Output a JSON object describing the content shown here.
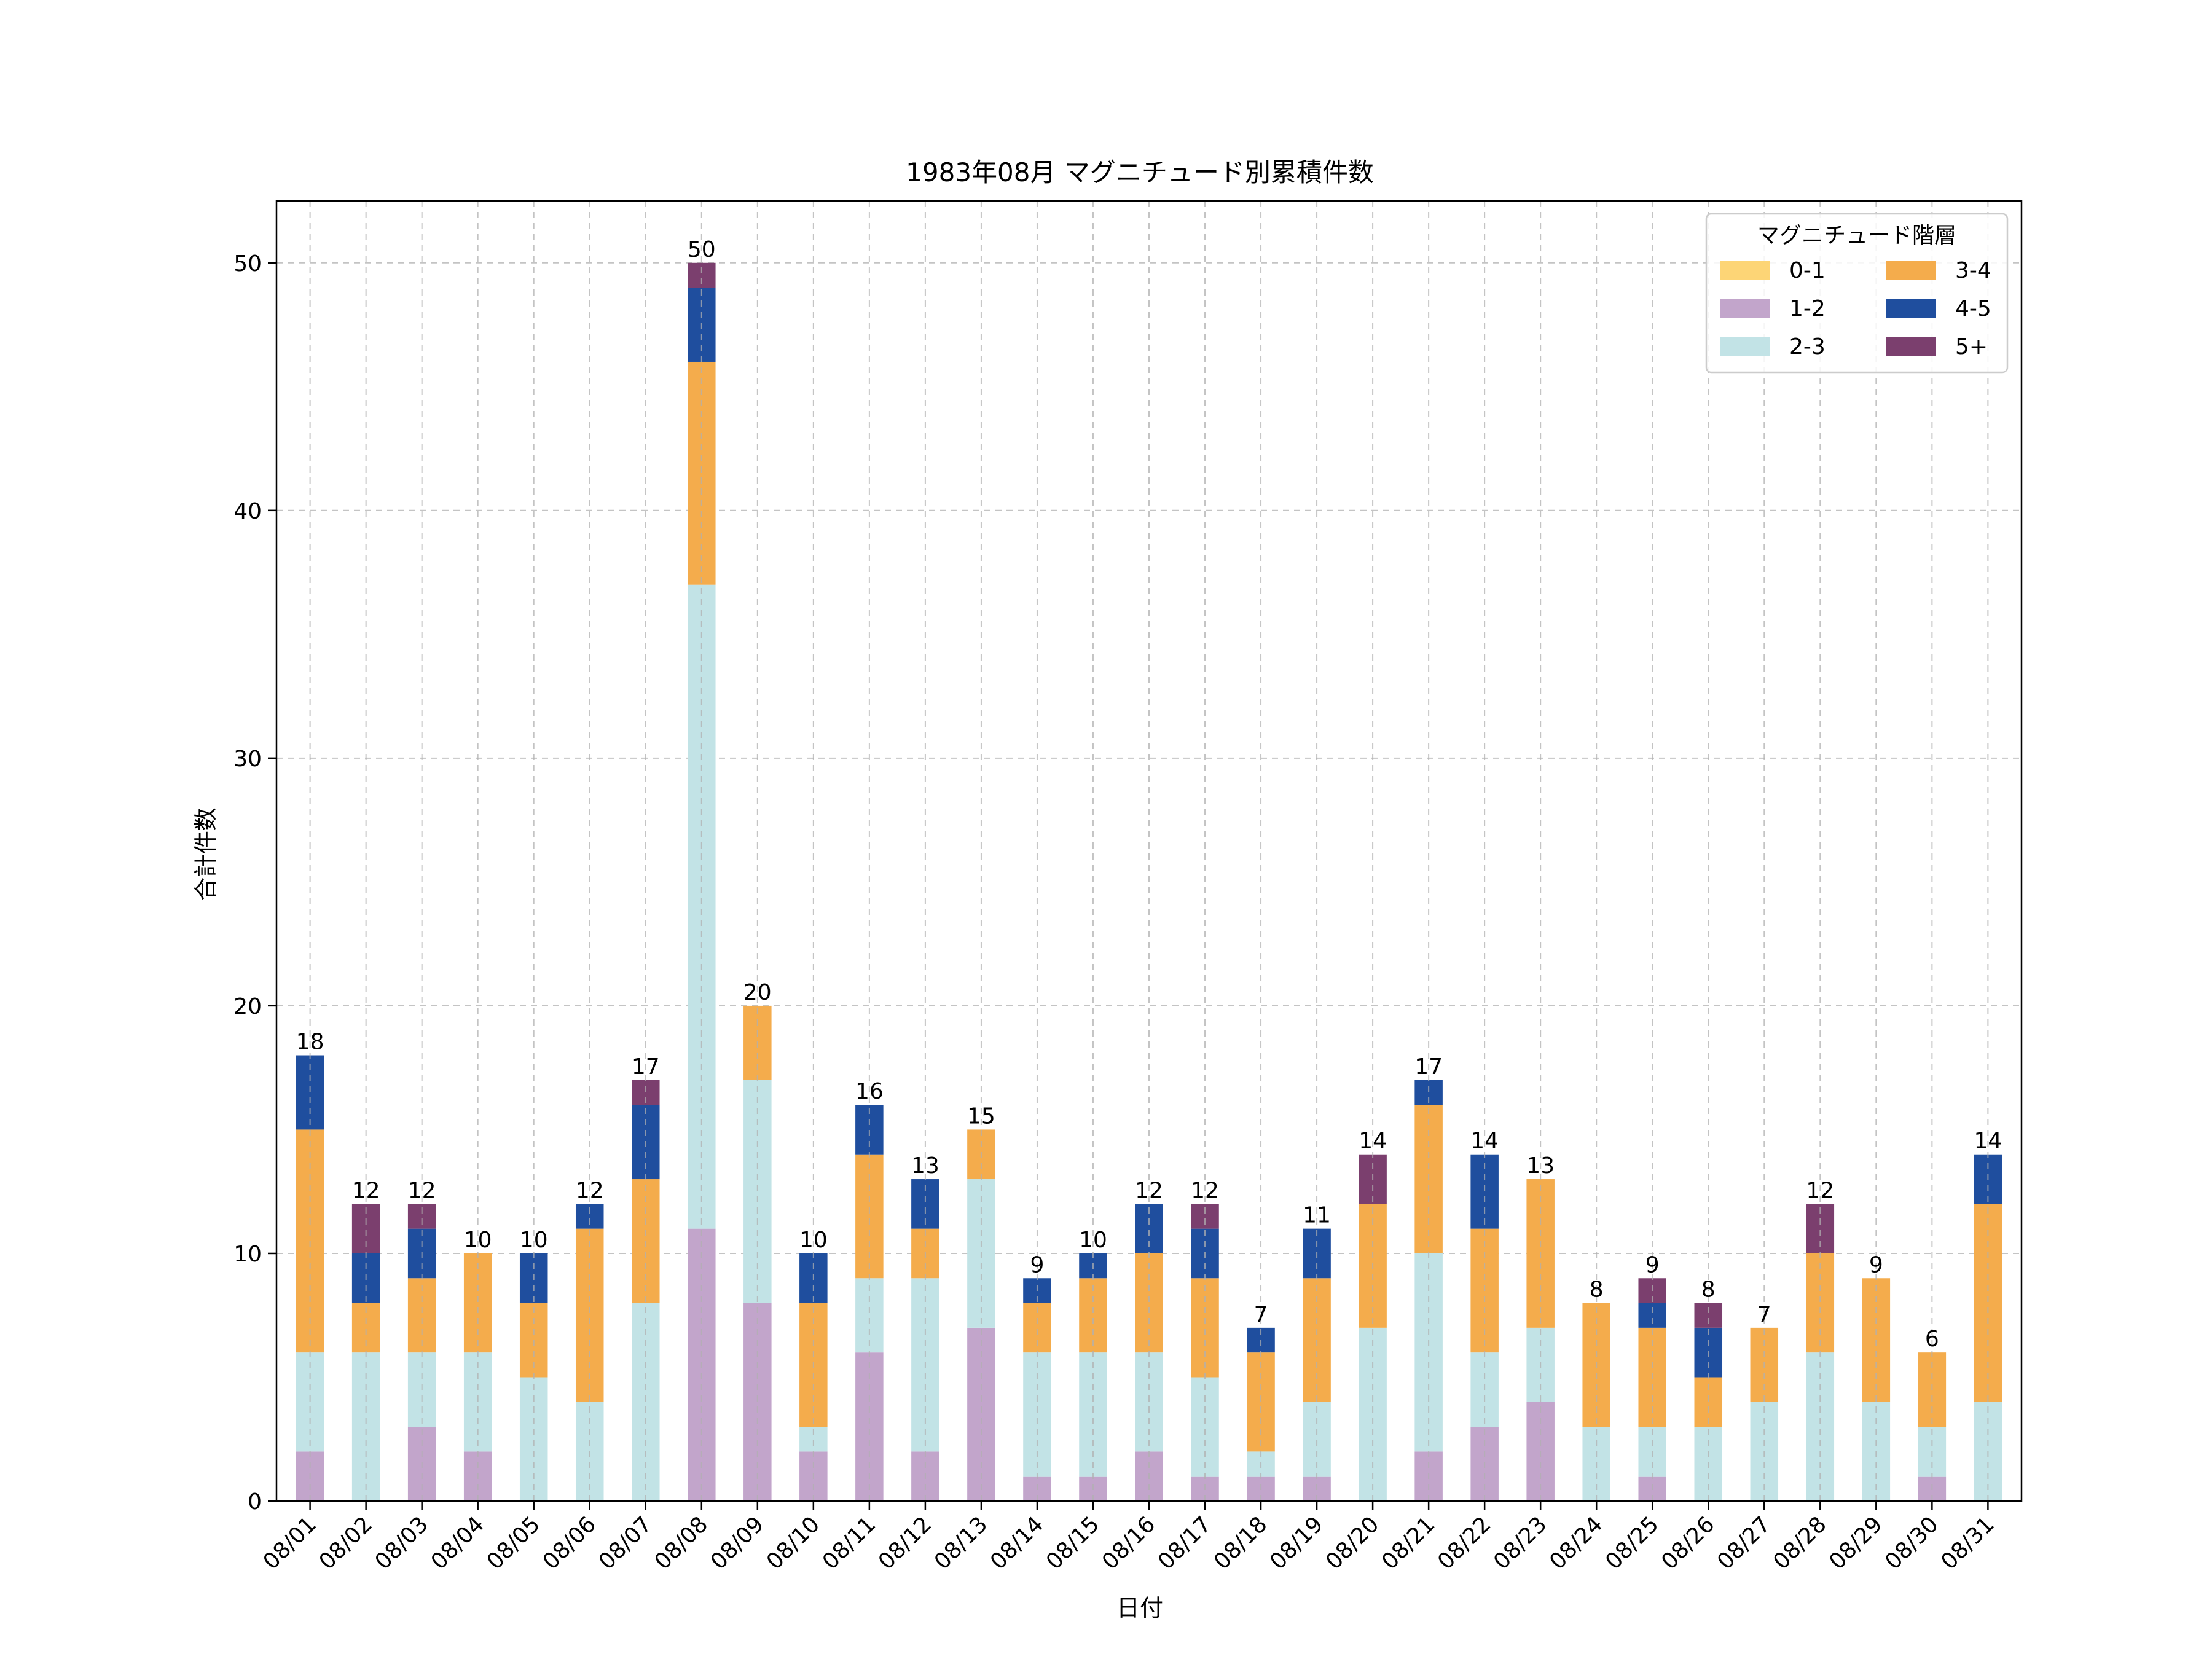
{
  "chart_data": {
    "type": "bar",
    "stacked": true,
    "title": "1983年08月 マグニチュード別累積件数",
    "xlabel": "日付",
    "ylabel": "合計件数",
    "ylim": [
      0,
      52.5
    ],
    "yticks": [
      0,
      10,
      20,
      30,
      40,
      50
    ],
    "grid": true,
    "legend": {
      "title": "マグニチュード階層",
      "position": "top-right",
      "columns": 2
    },
    "categories": [
      "08/01",
      "08/02",
      "08/03",
      "08/04",
      "08/05",
      "08/06",
      "08/07",
      "08/08",
      "08/09",
      "08/10",
      "08/11",
      "08/12",
      "08/13",
      "08/14",
      "08/15",
      "08/16",
      "08/17",
      "08/18",
      "08/19",
      "08/20",
      "08/21",
      "08/22",
      "08/23",
      "08/24",
      "08/25",
      "08/26",
      "08/27",
      "08/28",
      "08/29",
      "08/30",
      "08/31"
    ],
    "series": [
      {
        "name": "0-1",
        "color": "#FDD576",
        "values": [
          0,
          0,
          0,
          0,
          0,
          0,
          0,
          0,
          0,
          0,
          0,
          0,
          0,
          0,
          0,
          0,
          0,
          0,
          0,
          0,
          0,
          0,
          0,
          0,
          0,
          0,
          0,
          0,
          0,
          0,
          0
        ]
      },
      {
        "name": "1-2",
        "color": "#C2A5CB",
        "values": [
          2,
          0,
          3,
          2,
          0,
          0,
          0,
          11,
          8,
          2,
          6,
          2,
          7,
          1,
          1,
          2,
          1,
          1,
          1,
          0,
          2,
          3,
          4,
          0,
          1,
          0,
          0,
          0,
          0,
          1,
          0
        ]
      },
      {
        "name": "2-3",
        "color": "#C2E3E6",
        "values": [
          4,
          6,
          3,
          4,
          5,
          4,
          8,
          26,
          9,
          1,
          3,
          7,
          6,
          5,
          5,
          4,
          4,
          1,
          3,
          7,
          8,
          3,
          3,
          3,
          2,
          3,
          4,
          6,
          4,
          2,
          4
        ]
      },
      {
        "name": "3-4",
        "color": "#F4AC4C",
        "values": [
          9,
          2,
          3,
          4,
          3,
          7,
          5,
          9,
          3,
          5,
          5,
          2,
          2,
          2,
          3,
          4,
          4,
          4,
          5,
          5,
          6,
          5,
          6,
          5,
          4,
          2,
          3,
          4,
          5,
          3,
          8
        ]
      },
      {
        "name": "4-5",
        "color": "#1F4E9E",
        "values": [
          3,
          2,
          2,
          0,
          2,
          1,
          3,
          3,
          0,
          2,
          2,
          2,
          0,
          1,
          1,
          2,
          2,
          1,
          2,
          0,
          1,
          3,
          0,
          0,
          1,
          2,
          0,
          0,
          0,
          0,
          2
        ]
      },
      {
        "name": "5+",
        "color": "#7B3F6E",
        "values": [
          0,
          2,
          1,
          0,
          0,
          0,
          1,
          1,
          0,
          0,
          0,
          0,
          0,
          0,
          0,
          0,
          1,
          0,
          0,
          2,
          0,
          0,
          0,
          0,
          1,
          1,
          0,
          2,
          0,
          0,
          0
        ]
      }
    ],
    "totals": [
      18,
      12,
      12,
      10,
      10,
      12,
      17,
      50,
      20,
      10,
      16,
      13,
      15,
      9,
      10,
      12,
      12,
      7,
      11,
      14,
      17,
      14,
      13,
      8,
      9,
      8,
      7,
      12,
      9,
      6,
      14
    ]
  }
}
